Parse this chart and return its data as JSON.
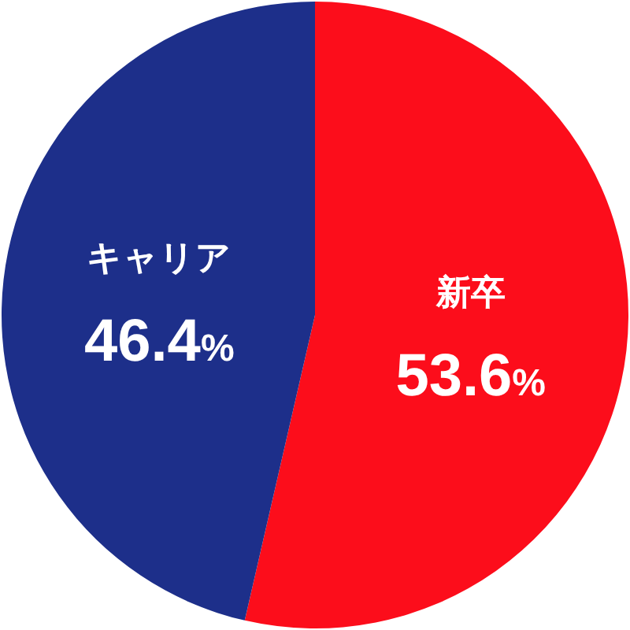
{
  "chart_data": {
    "type": "pie",
    "categories": [
      "新卒",
      "キャリア"
    ],
    "values": [
      53.6,
      46.4
    ],
    "colors": [
      "#fc0d1b",
      "#1d2f8a"
    ],
    "value_labels": [
      "53.6%",
      "46.4%"
    ]
  }
}
